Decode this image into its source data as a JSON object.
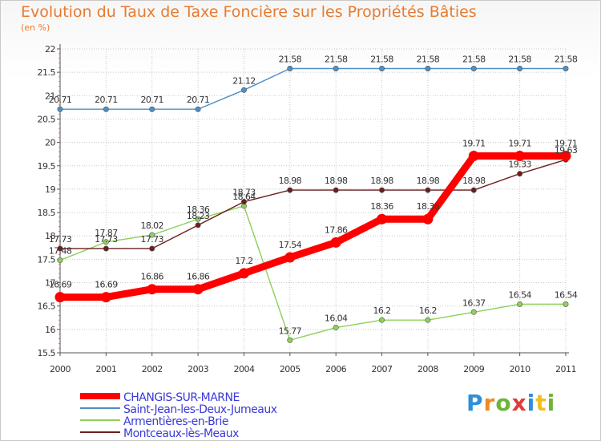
{
  "title": "Evolution du Taux de Taxe Foncière sur les Propriétés Bâties",
  "unit_label": "(en %)",
  "logo": {
    "text": "Proxiti",
    "colors": [
      "#2f8fd8",
      "#f08a24",
      "#6fb33a",
      "#e03c3c",
      "#2f8fd8",
      "#f0c020",
      "#6fb33a"
    ]
  },
  "chart_data": {
    "type": "line",
    "title": "Evolution du Taux de Taxe Foncière sur les Propriétés Bâties",
    "ylabel": "(en %)",
    "xlabel": "",
    "x": [
      "2000",
      "2001",
      "2002",
      "2003",
      "2004",
      "2005",
      "2006",
      "2007",
      "2008",
      "2009",
      "2010",
      "2011"
    ],
    "ylim": [
      15.5,
      22
    ],
    "yticks": [
      "15.5",
      "16",
      "16.5",
      "17",
      "17.5",
      "18",
      "18.5",
      "19",
      "19.5",
      "20",
      "20.5",
      "21",
      "21.5",
      "22"
    ],
    "grid": true,
    "legend_position": "bottom-left",
    "series": [
      {
        "name": "CHANGIS-SUR-MARNE",
        "color": "#ff0000",
        "values": [
          16.69,
          16.69,
          16.86,
          16.86,
          17.2,
          17.54,
          17.86,
          18.36,
          18.36,
          19.71,
          19.71,
          19.71
        ],
        "labels": [
          "16.69",
          "16.69",
          "16.86",
          "16.86",
          "17.2",
          "17.54",
          "17.86",
          "18.36",
          "18.36",
          "19.71",
          "19.71",
          "19.71"
        ]
      },
      {
        "name": "Saint-Jean-les-Deux-Jumeaux",
        "color": "#4d90c8",
        "values": [
          20.71,
          20.71,
          20.71,
          20.71,
          21.12,
          21.58,
          21.58,
          21.58,
          21.58,
          21.58,
          21.58,
          21.58
        ],
        "labels": [
          "20.71",
          "20.71",
          "20.71",
          "20.71",
          "21.12",
          "21.58",
          "21.58",
          "21.58",
          "21.58",
          "21.58",
          "21.58",
          "21.58"
        ]
      },
      {
        "name": "Armentières-en-Brie",
        "color": "#8fd05a",
        "values": [
          17.48,
          17.87,
          18.02,
          18.36,
          18.64,
          15.77,
          16.04,
          16.2,
          16.2,
          16.37,
          16.54,
          16.54
        ],
        "labels": [
          "17.48",
          "17.87",
          "18.02",
          "18.36",
          "18.64",
          "15.77",
          "16.04",
          "16.2",
          "16.2",
          "16.37",
          "16.54",
          "16.54"
        ]
      },
      {
        "name": "Montceaux-lès-Meaux",
        "color": "#6b1f1f",
        "values": [
          17.73,
          17.73,
          17.73,
          18.23,
          18.73,
          18.98,
          18.98,
          18.98,
          18.98,
          18.98,
          19.33,
          19.63
        ],
        "labels": [
          "17.73",
          "17.73",
          "17.73",
          "18.23",
          "18.73",
          "18.98",
          "18.98",
          "18.98",
          "18.98",
          "18.98",
          "19.33",
          "19.63"
        ]
      }
    ]
  }
}
